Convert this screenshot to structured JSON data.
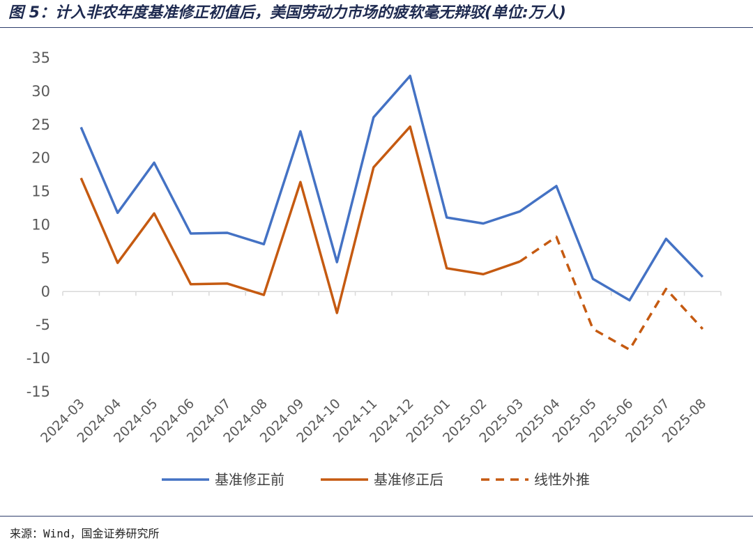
{
  "title": "图 5：计入非农年度基准修正初值后，美国劳动力市场的疲软毫无辩驳(单位:万人)",
  "source": "来源：Wind，国金证券研究所",
  "chart_data": {
    "type": "line",
    "categories": [
      "2024-03",
      "2024-04",
      "2024-05",
      "2024-06",
      "2024-07",
      "2024-08",
      "2024-09",
      "2024-10",
      "2024-11",
      "2024-12",
      "2025-01",
      "2025-02",
      "2025-03",
      "2025-04",
      "2025-05",
      "2025-06",
      "2025-07",
      "2025-08"
    ],
    "ylim": [
      -15,
      35
    ],
    "yticks": [
      35,
      30,
      25,
      20,
      15,
      10,
      5,
      0,
      -5,
      -10,
      -15
    ],
    "grid": false,
    "legend_position": "bottom",
    "series": [
      {
        "name": "基准修正前",
        "color": "#4472c4",
        "style": "solid",
        "values": [
          24.6,
          11.8,
          19.3,
          8.7,
          8.8,
          7.1,
          24.0,
          4.4,
          26.1,
          32.3,
          11.1,
          10.2,
          12.0,
          15.8,
          1.9,
          -1.3,
          7.9,
          2.2
        ]
      },
      {
        "name": "基准修正后",
        "color": "#c55a11",
        "style": "solid",
        "values": [
          17.0,
          4.3,
          11.7,
          1.1,
          1.2,
          -0.5,
          16.4,
          -3.2,
          18.6,
          24.7,
          3.5,
          2.6,
          4.5,
          null,
          null,
          null,
          null,
          null
        ]
      },
      {
        "name": "线性外推",
        "color": "#c55a11",
        "style": "dashed",
        "values": [
          null,
          null,
          null,
          null,
          null,
          null,
          null,
          null,
          null,
          null,
          null,
          null,
          4.5,
          8.2,
          -5.6,
          -8.7,
          0.4,
          -5.6
        ]
      }
    ]
  }
}
